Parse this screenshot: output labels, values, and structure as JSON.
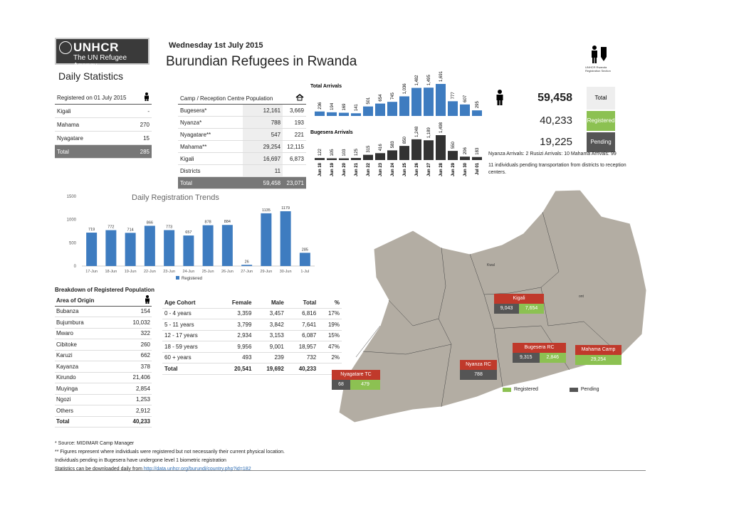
{
  "header": {
    "logo_name": "UNHCR",
    "logo_tag": "The UN Refugee Agency",
    "date": "Wednesday 1st July 2015",
    "title": "Burundian Refugees in Rwanda",
    "subtitle": "Daily Statistics",
    "corner_text": "UNHCR Rwanda Registration Section"
  },
  "registered": {
    "heading": "Registered on 01 July 2015",
    "rows": [
      {
        "name": "Kigali",
        "value": "-"
      },
      {
        "name": "Mahama",
        "value": "270"
      },
      {
        "name": "Nyagatare",
        "value": "15"
      }
    ],
    "total_label": "Total",
    "total_value": "285"
  },
  "camp": {
    "heading": "Camp / Reception Centre Population",
    "rows": [
      {
        "name": "Bugesera*",
        "a": "12,161",
        "b": "3,669"
      },
      {
        "name": "Nyanza*",
        "a": "788",
        "b": "193"
      },
      {
        "name": "Nyagatare**",
        "a": "547",
        "b": "221"
      },
      {
        "name": "Mahama**",
        "a": "29,254",
        "b": "12,115"
      },
      {
        "name": "Kigali",
        "a": "16,697",
        "b": "6,873"
      },
      {
        "name": "Districts",
        "a": "11",
        "b": ""
      }
    ],
    "total_label": "Total",
    "total_a": "59,458",
    "total_b": "23,071"
  },
  "summary": {
    "total_value": "59,458",
    "total_label": "Total",
    "registered_value": "40,233",
    "registered_label": "Registered",
    "pending_value": "19,225",
    "pending_label": "Pending",
    "arrivals_line": "Nyanza Arrivals: 2   Rusizi Arrivals: 10   Mahama Arrivals: 99",
    "pending_note": "11 individuals pending transportation from districts to reception centers.",
    "colors": {
      "registered": "#8cc152",
      "pending": "#555555",
      "blue": "#3e7cc0"
    }
  },
  "chart_data": [
    {
      "type": "bar",
      "title": "Total Arrivals",
      "categories": [
        "Jun 18",
        "Jun 19",
        "Jun 20",
        "Jun 21",
        "Jun 22",
        "Jun 23",
        "Jun 24",
        "Jun 25",
        "Jun 26",
        "Jun 27",
        "Jun 28",
        "Jun 29",
        "Jun 30",
        "Jul 01"
      ],
      "values": [
        236,
        194,
        169,
        141,
        501,
        654,
        745,
        1036,
        1482,
        1495,
        1691,
        777,
        607,
        295
      ],
      "labels": [
        "236",
        "194",
        "169",
        "141",
        "501",
        "654",
        "745",
        "1,036",
        "1,482",
        "1,495",
        "1,691",
        "777",
        "607",
        "295"
      ]
    },
    {
      "type": "bar",
      "title": "Bugesera Arrivals",
      "categories": [
        "Jun 18",
        "Jun 19",
        "Jun 20",
        "Jun 21",
        "Jun 22",
        "Jun 23",
        "Jun 24",
        "Jun 25",
        "Jun 26",
        "Jun 27",
        "Jun 28",
        "Jun 29",
        "Jun 30",
        "Jul 01"
      ],
      "values": [
        122,
        105,
        103,
        125,
        315,
        416,
        583,
        850,
        1248,
        1189,
        1498,
        550,
        206,
        183
      ],
      "labels": [
        "122",
        "105",
        "103",
        "125",
        "315",
        "416",
        "583",
        "850",
        "1,248",
        "1,189",
        "1,498",
        "550",
        "206",
        "183"
      ]
    },
    {
      "type": "bar",
      "title": "Daily Registration Trends",
      "categories": [
        "17-Jun",
        "18-Jun",
        "19-Jun",
        "22-Jun",
        "23-Jun",
        "24-Jun",
        "25-Jun",
        "26-Jun",
        "27-Jun",
        "29-Jun",
        "30-Jun",
        "1-Jul"
      ],
      "series": [
        {
          "name": "Registered",
          "values": [
            719,
            772,
            714,
            866,
            773,
            657,
            878,
            884,
            26,
            1135,
            1179,
            285
          ]
        }
      ],
      "yticks": [
        "0",
        "500",
        "1000",
        "1500"
      ],
      "ylim": [
        0,
        1500
      ]
    }
  ],
  "breakdown": {
    "heading": "Breakdown of Registered Population",
    "col_area": "Area of Origin",
    "rows": [
      {
        "name": "Bubanza",
        "value": "154"
      },
      {
        "name": "Bujumbura",
        "value": "10,032"
      },
      {
        "name": "Mwaro",
        "value": "322"
      },
      {
        "name": "Cibitoke",
        "value": "260"
      },
      {
        "name": "Karuzi",
        "value": "662"
      },
      {
        "name": "Kayanza",
        "value": "378"
      },
      {
        "name": "Kirundo",
        "value": "21,406"
      },
      {
        "name": "Muyinga",
        "value": "2,854"
      },
      {
        "name": "Ngozi",
        "value": "1,253"
      },
      {
        "name": "Others",
        "value": "2,912"
      }
    ],
    "total_label": "Total",
    "total_value": "40,233"
  },
  "age": {
    "headers": [
      "Age Cohort",
      "Female",
      "Male",
      "Total",
      "%"
    ],
    "rows": [
      [
        "0 - 4 years",
        "3,359",
        "3,457",
        "6,816",
        "17%"
      ],
      [
        "5 - 11 years",
        "3,799",
        "3,842",
        "7,641",
        "19%"
      ],
      [
        "12 - 17 years",
        "2,934",
        "3,153",
        "6,087",
        "15%"
      ],
      [
        "18 - 59 years",
        "9,956",
        "9,001",
        "18,957",
        "47%"
      ],
      [
        "60 + years",
        "493",
        "239",
        "732",
        "2%"
      ]
    ],
    "total": [
      "Total",
      "20,541",
      "19,692",
      "40,233",
      ""
    ]
  },
  "map": {
    "labels": {
      "north": "Kwal",
      "east": "ont"
    },
    "boxes": [
      {
        "title": "Kigali",
        "pending": "9,043",
        "registered": "7,654"
      },
      {
        "title": "Bugesera RC",
        "pending": "9,315",
        "registered": "2,846"
      },
      {
        "title": "Mahama Camp",
        "pending": "",
        "registered": "29,254"
      },
      {
        "title": "Nyanza RC",
        "pending": "788",
        "registered": ""
      },
      {
        "title": "Nyagatare TC",
        "pending": "68",
        "registered": "479"
      }
    ],
    "legend_registered": "Registered",
    "legend_pending": "Pending",
    "colors": {
      "title": "#c0392b",
      "registered": "#8cc152",
      "pending": "#555555",
      "land": "#b3ada3"
    }
  },
  "notes": {
    "n1": "* Source: MIDIMAR Camp Manager",
    "n2": "** Figures represent where individuals were registered but not necessarily their current physical location.",
    "n3": "Individuals pending in Bugesera have undergone level 1 biometric registration",
    "n4_prefix": "Statistics can be downloaded daily from ",
    "n4_link": "http://data.unhcr.org/burundi/country.php?id=182"
  }
}
